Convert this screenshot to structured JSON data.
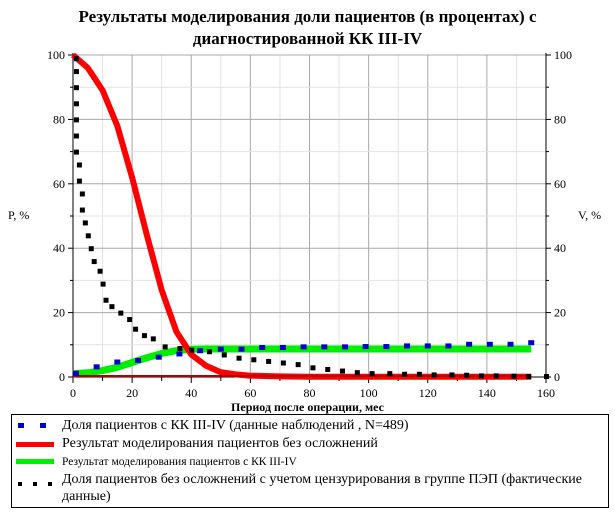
{
  "chart_data": {
    "type": "line",
    "title": "Результаты моделирования доли пациентов (в процентах) с диагностированной КК III-IV",
    "title_lines": [
      "Результаты моделирования доли пациентов (в процентах) с",
      "диагностированной КК III-IV"
    ],
    "xlabel": "Период после операции, мес",
    "ylabel_left": "P, %",
    "ylabel_right": "V, %",
    "xlim": [
      0,
      160
    ],
    "ylim": [
      0,
      100
    ],
    "x_ticks": [
      0,
      20,
      40,
      60,
      80,
      100,
      120,
      140,
      160
    ],
    "y_ticks": [
      0,
      20,
      40,
      60,
      80,
      100
    ],
    "grid": true,
    "legend_position": "bottom",
    "series": [
      {
        "name": "Доля пациентов с КК III-IV (данные наблюдений , N=489)",
        "style": "square-markers",
        "color": "#0000cc",
        "x": [
          1,
          8,
          15,
          22,
          29,
          36,
          43,
          50,
          57,
          64,
          71,
          78,
          85,
          92,
          99,
          106,
          113,
          120,
          127,
          134,
          141,
          148,
          155
        ],
        "y": [
          1,
          3,
          4.5,
          5,
          6,
          7,
          8,
          8.5,
          8.5,
          9,
          9,
          9.2,
          9.2,
          9.2,
          9.3,
          9.3,
          9.5,
          9.5,
          9.5,
          10,
          10,
          10,
          10.5
        ]
      },
      {
        "name": "Результат моделирования пациентов без осложнений",
        "style": "line",
        "color": "#ff0000",
        "x": [
          0,
          5,
          10,
          15,
          20,
          25,
          30,
          35,
          40,
          45,
          50,
          55,
          60,
          70,
          80,
          100,
          120,
          140,
          155
        ],
        "y": [
          100,
          96,
          89,
          78,
          62,
          44,
          27,
          14,
          7,
          3.5,
          1.5,
          0.8,
          0.4,
          0.2,
          0.1,
          0.1,
          0.1,
          0.1,
          0.1
        ]
      },
      {
        "name": "Результат моделирования пациентов с КК III-IV",
        "style": "line",
        "color": "#00ee00",
        "x": [
          0,
          5,
          10,
          15,
          20,
          25,
          30,
          35,
          40,
          45,
          50,
          60,
          80,
          100,
          120,
          140,
          155
        ],
        "y": [
          1,
          1.3,
          2,
          3,
          4.5,
          6,
          7.3,
          8.2,
          8.6,
          8.7,
          8.7,
          8.7,
          8.7,
          8.7,
          8.7,
          8.7,
          8.7
        ]
      },
      {
        "name": "Доля пациентов без осложнений с учетом цензурирования в группе ПЭП (фактические данные)",
        "style": "dotted-markers",
        "color": "#000000",
        "x": [
          1,
          1,
          1,
          1,
          1,
          1,
          1,
          2,
          2,
          3,
          3,
          4,
          5,
          6,
          7,
          9,
          10,
          11,
          13,
          16,
          19,
          21,
          24,
          27,
          31,
          36,
          40,
          46,
          51,
          56,
          61,
          66,
          71,
          76,
          81,
          86,
          91,
          96,
          101,
          107,
          112,
          117,
          122,
          128,
          133,
          138,
          143,
          149,
          154,
          160
        ],
        "y": [
          99,
          95,
          90,
          85,
          80,
          75,
          70,
          66,
          61,
          57,
          52,
          48,
          44,
          40,
          36,
          33,
          29,
          24,
          22,
          20,
          18,
          15,
          13,
          12,
          9.5,
          9,
          8.5,
          8,
          7,
          6,
          5.5,
          5,
          4.5,
          4,
          3,
          2.5,
          2,
          1.5,
          1.2,
          1.2,
          1,
          1,
          0.8,
          0.8,
          0.7,
          0.5,
          0.5,
          0.4,
          0.3,
          0.3
        ]
      }
    ]
  },
  "legend": {
    "items": [
      {
        "label": "Доля пациентов с КК III-IV (данные наблюдений , N=489)",
        "symbol": "blue-squares"
      },
      {
        "label": "Результат моделирования пациентов без осложнений",
        "symbol": "red-line"
      },
      {
        "label": "Результат моделирования пациентов с КК III-IV",
        "symbol": "green-line"
      },
      {
        "label": "Доля пациентов без осложнений с учетом цензурирования в группе ПЭП (фактические",
        "label_cont": "данные)",
        "symbol": "black-dots"
      }
    ]
  }
}
